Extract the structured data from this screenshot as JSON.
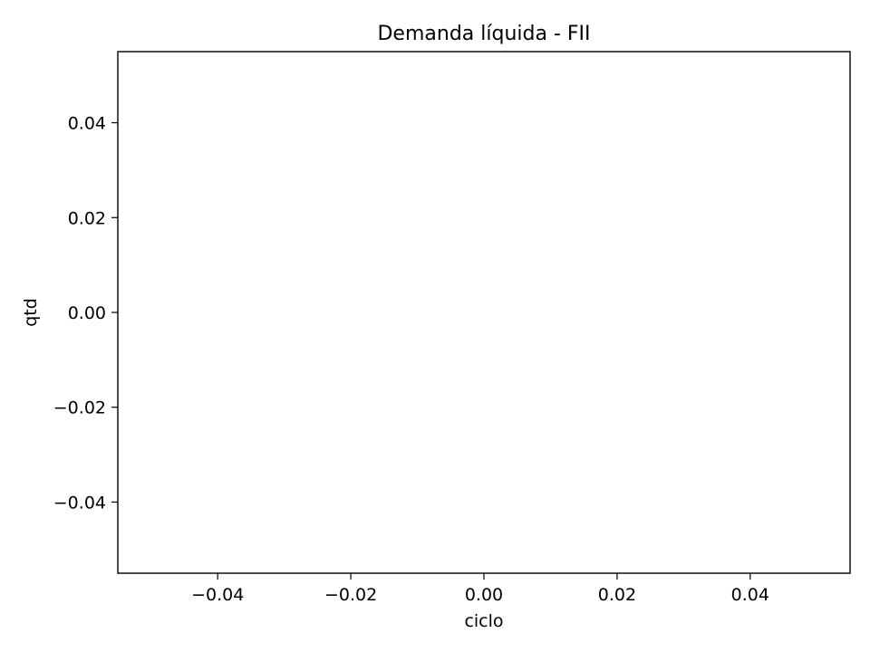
{
  "chart_data": {
    "type": "line",
    "title": "Demanda líquida - FII",
    "xlabel": "ciclo",
    "ylabel": "qtd",
    "xlim": [
      -0.055,
      0.055
    ],
    "ylim": [
      -0.055,
      0.055
    ],
    "x_ticks": [
      {
        "value": -0.04,
        "label": "−0.04"
      },
      {
        "value": -0.02,
        "label": "−0.02"
      },
      {
        "value": 0.0,
        "label": "0.00"
      },
      {
        "value": 0.02,
        "label": "0.02"
      },
      {
        "value": 0.04,
        "label": "0.04"
      }
    ],
    "y_ticks": [
      {
        "value": 0.04,
        "label": "0.04"
      },
      {
        "value": 0.02,
        "label": "0.02"
      },
      {
        "value": 0.0,
        "label": "0.00"
      },
      {
        "value": -0.02,
        "label": "−0.02"
      },
      {
        "value": -0.04,
        "label": "−0.04"
      }
    ],
    "series": [],
    "grid": false,
    "legend": false
  }
}
